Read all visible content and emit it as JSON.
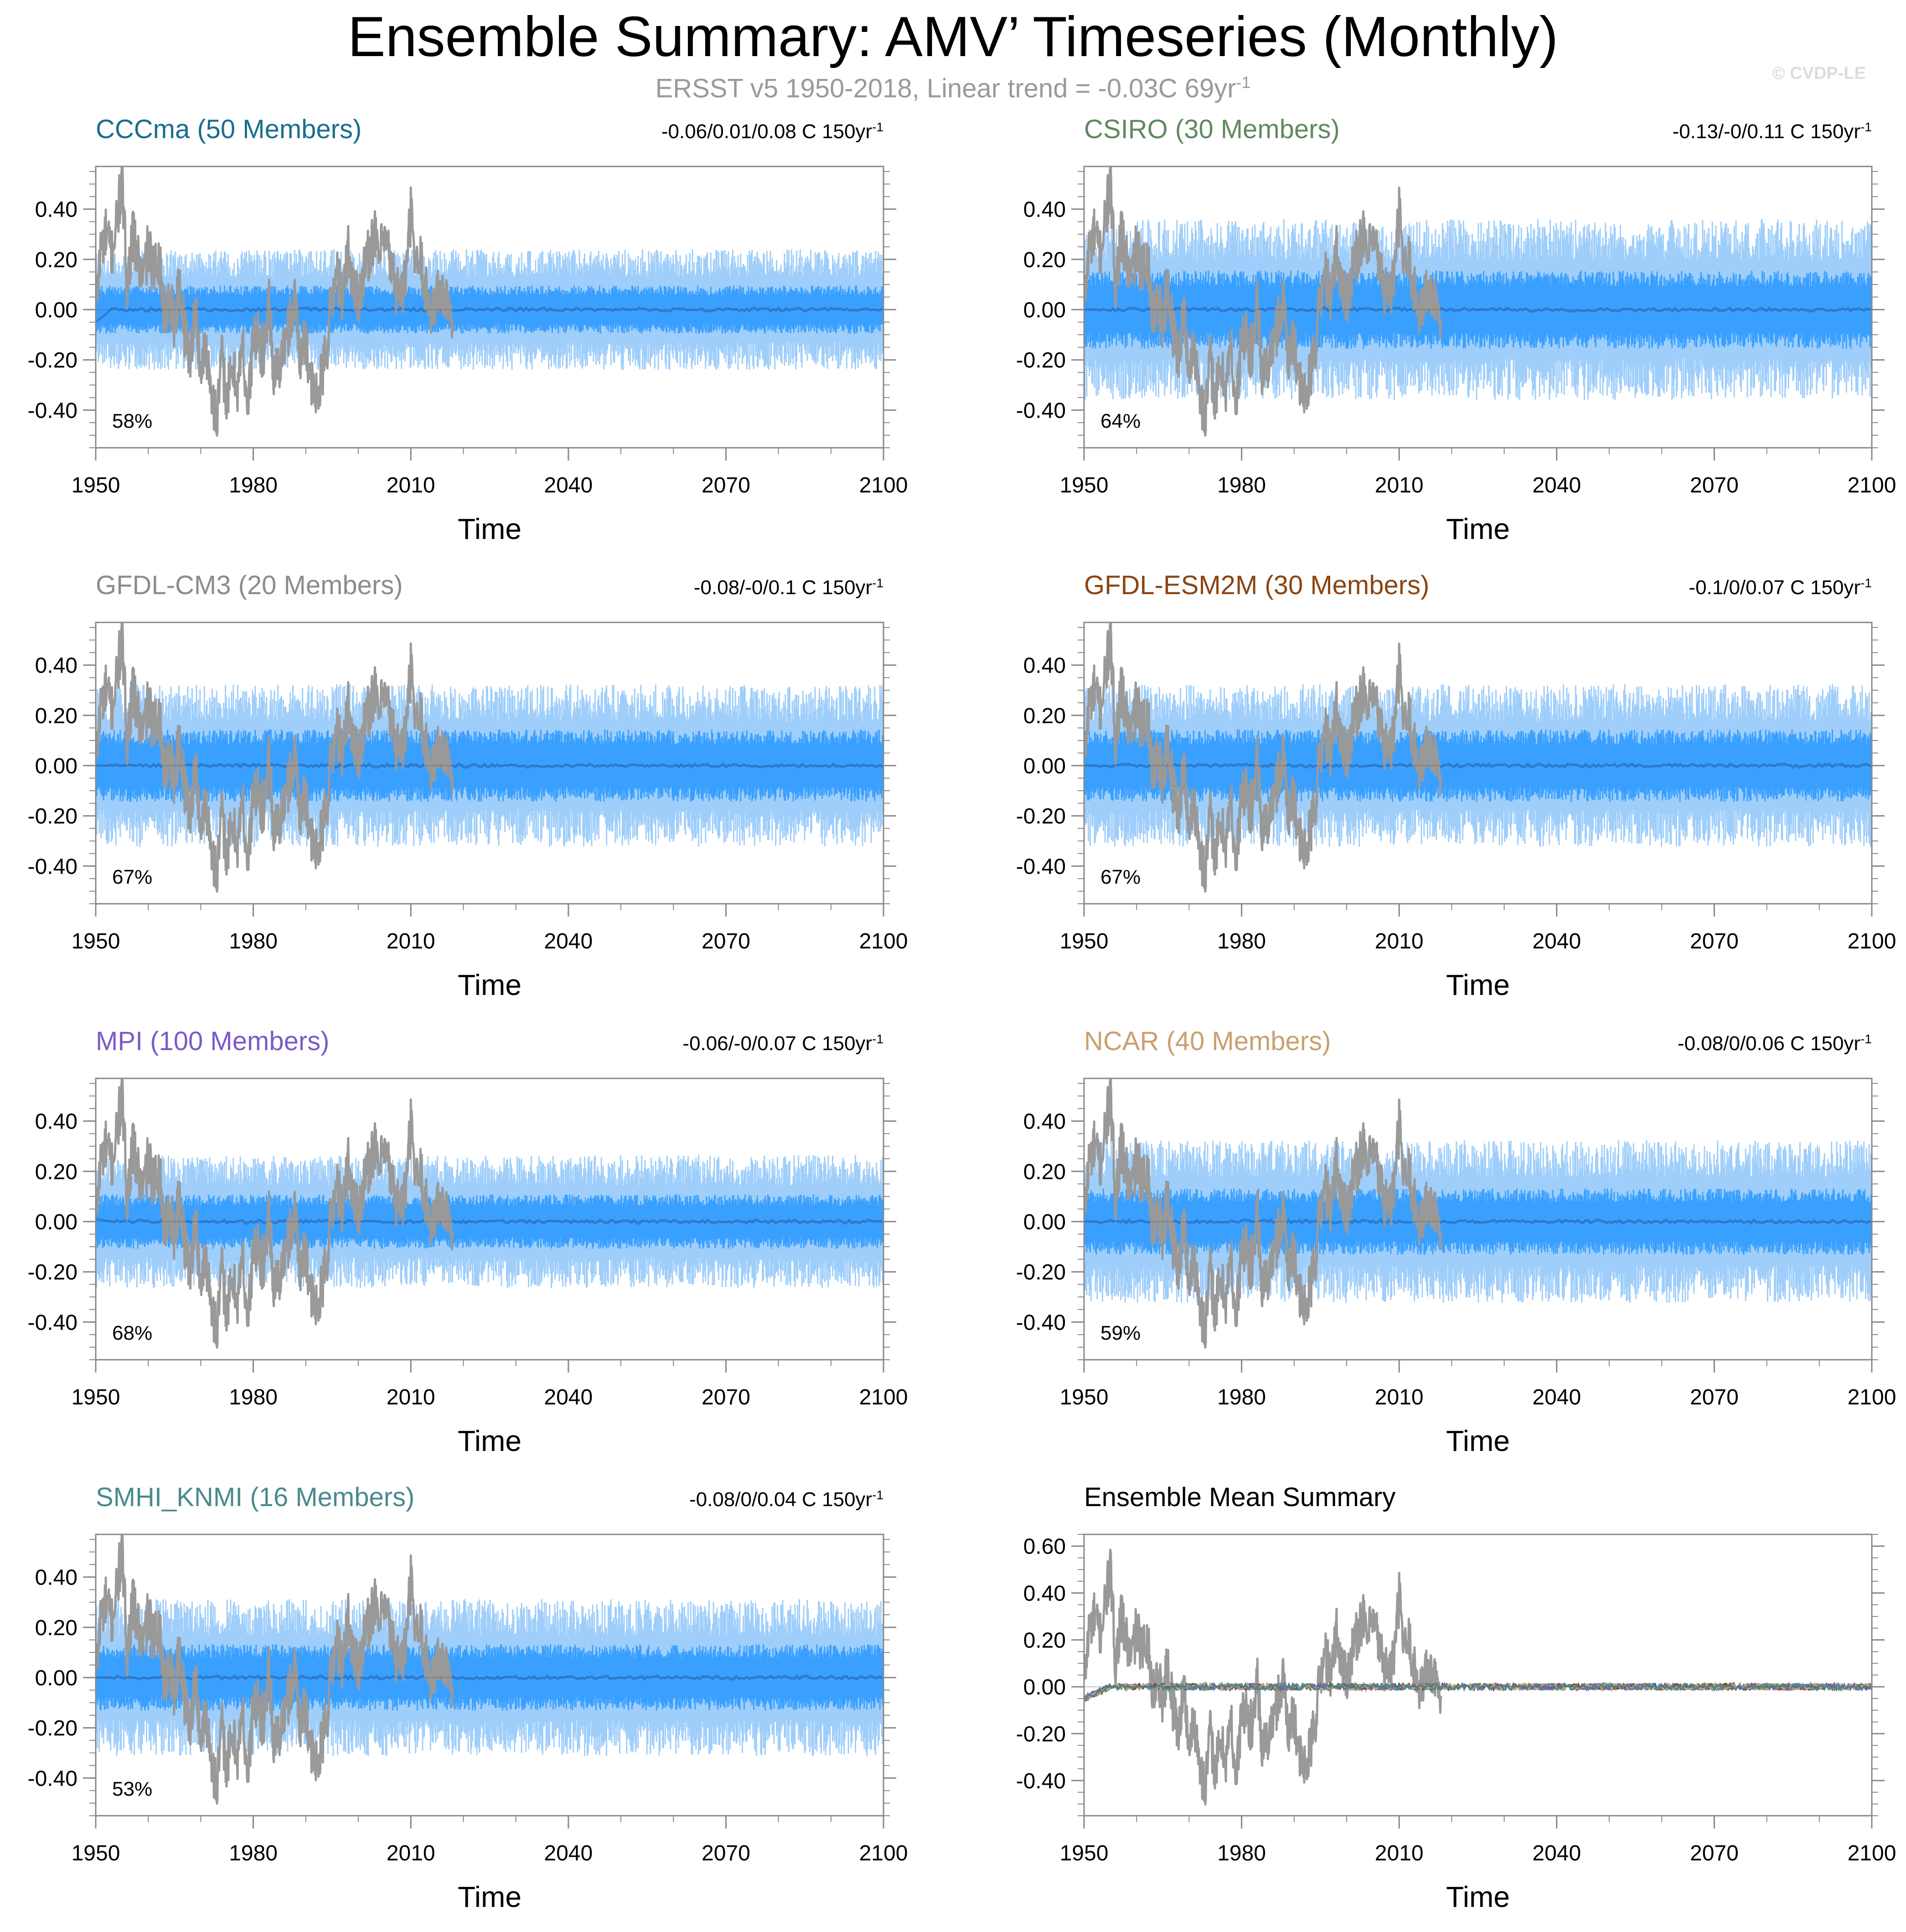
{
  "title": "Ensemble Summary: AMV’ Timeseries (Monthly)",
  "subtitle": {
    "text": "ERSST v5 1950-2018, Linear trend = -0.03C 69yr",
    "superscript": "-1"
  },
  "watermark": "© CVDP-LE",
  "colors": {
    "obs": "#999999",
    "band_outer": "#9fcefa",
    "band_inner": "#3aa0ff",
    "mean_line": "#2a7fd8",
    "axis": "#888888"
  },
  "chart_data": [
    {
      "type": "line",
      "panel": "CCCma",
      "title": "CCCma (50 Members)",
      "title_color": "#1a6e8e",
      "trend_text": "-0.06/0.01/0.08 C 150yr",
      "trend_sup": "-1",
      "percent_label": "58%",
      "xlabel": "Time",
      "xlim": [
        1950,
        2100
      ],
      "ylim": [
        -0.55,
        0.57
      ],
      "xticks": [
        "1950",
        "1980",
        "2010",
        "2040",
        "2070",
        "2100"
      ],
      "yticks": [
        "0.40",
        "0.20",
        "0.00",
        "-0.20",
        "-0.40"
      ],
      "series": [
        {
          "name": "Ensemble 10-90% range",
          "lower": -0.2,
          "upper": 0.2
        },
        {
          "name": "Ensemble 25-75% range",
          "lower": -0.08,
          "upper": 0.08
        },
        {
          "name": "Ensemble mean",
          "start": -0.05,
          "value": 0.0
        },
        {
          "name": "ERSST v5",
          "x_range": [
            1950,
            2018
          ]
        }
      ]
    },
    {
      "type": "line",
      "panel": "CSIRO",
      "title": "CSIRO (30 Members)",
      "title_color": "#5f8a5f",
      "trend_text": "-0.13/-0/0.11 C 150yr",
      "trend_sup": "-1",
      "percent_label": "64%",
      "xlabel": "Time",
      "xlim": [
        1950,
        2100
      ],
      "ylim": [
        -0.55,
        0.57
      ],
      "xticks": [
        "1950",
        "1980",
        "2010",
        "2040",
        "2070",
        "2100"
      ],
      "yticks": [
        "0.40",
        "0.20",
        "0.00",
        "-0.20",
        "-0.40"
      ],
      "series": [
        {
          "name": "Ensemble 10-90% range",
          "lower": -0.3,
          "upper": 0.3
        },
        {
          "name": "Ensemble 25-75% range",
          "lower": -0.13,
          "upper": 0.13
        },
        {
          "name": "Ensemble mean",
          "start": 0.0,
          "value": 0.0
        },
        {
          "name": "ERSST v5",
          "x_range": [
            1950,
            2018
          ]
        }
      ]
    },
    {
      "type": "line",
      "panel": "GFDL-CM3",
      "title": "GFDL-CM3 (20 Members)",
      "title_color": "#8c8c8c",
      "trend_text": "-0.08/-0/0.1 C 150yr",
      "trend_sup": "-1",
      "percent_label": "67%",
      "xlabel": "Time",
      "xlim": [
        1950,
        2100
      ],
      "ylim": [
        -0.55,
        0.57
      ],
      "xticks": [
        "1950",
        "1980",
        "2010",
        "2040",
        "2070",
        "2100"
      ],
      "yticks": [
        "0.40",
        "0.20",
        "0.00",
        "-0.20",
        "-0.40"
      ],
      "series": [
        {
          "name": "Ensemble 10-90% range",
          "lower": -0.27,
          "upper": 0.27
        },
        {
          "name": "Ensemble 25-75% range",
          "lower": -0.12,
          "upper": 0.12
        },
        {
          "name": "Ensemble mean",
          "start": 0.0,
          "value": 0.0
        },
        {
          "name": "ERSST v5",
          "x_range": [
            1950,
            2018
          ]
        }
      ]
    },
    {
      "type": "line",
      "panel": "GFDL-ESM2M",
      "title": "GFDL-ESM2M (30 Members)",
      "title_color": "#8b4513",
      "trend_text": "-0.1/0/0.07 C 150yr",
      "trend_sup": "-1",
      "percent_label": "67%",
      "xlabel": "Time",
      "xlim": [
        1950,
        2100
      ],
      "ylim": [
        -0.55,
        0.57
      ],
      "xticks": [
        "1950",
        "1980",
        "2010",
        "2040",
        "2070",
        "2100"
      ],
      "yticks": [
        "0.40",
        "0.20",
        "0.00",
        "-0.20",
        "-0.40"
      ],
      "series": [
        {
          "name": "Ensemble 10-90% range",
          "lower": -0.27,
          "upper": 0.27
        },
        {
          "name": "Ensemble 25-75% range",
          "lower": -0.12,
          "upper": 0.12
        },
        {
          "name": "Ensemble mean",
          "start": 0.0,
          "value": 0.0
        },
        {
          "name": "ERSST v5",
          "x_range": [
            1950,
            2018
          ]
        }
      ]
    },
    {
      "type": "line",
      "panel": "MPI",
      "title": "MPI (100 Members)",
      "title_color": "#7b5bc9",
      "trend_text": "-0.06/-0/0.07 C 150yr",
      "trend_sup": "-1",
      "percent_label": "68%",
      "xlabel": "Time",
      "xlim": [
        1950,
        2100
      ],
      "ylim": [
        -0.55,
        0.57
      ],
      "xticks": [
        "1950",
        "1980",
        "2010",
        "2040",
        "2070",
        "2100"
      ],
      "yticks": [
        "0.40",
        "0.20",
        "0.00",
        "-0.20",
        "-0.40"
      ],
      "series": [
        {
          "name": "Ensemble 10-90% range",
          "lower": -0.22,
          "upper": 0.22
        },
        {
          "name": "Ensemble 25-75% range",
          "lower": -0.09,
          "upper": 0.09
        },
        {
          "name": "Ensemble mean",
          "start": 0.01,
          "value": 0.0
        },
        {
          "name": "ERSST v5",
          "x_range": [
            1950,
            2018
          ]
        }
      ]
    },
    {
      "type": "line",
      "panel": "NCAR",
      "title": "NCAR (40 Members)",
      "title_color": "#c9a070",
      "trend_text": "-0.08/0/0.06 C 150yr",
      "trend_sup": "-1",
      "percent_label": "59%",
      "xlabel": "Time",
      "xlim": [
        1950,
        2100
      ],
      "ylim": [
        -0.55,
        0.57
      ],
      "xticks": [
        "1950",
        "1980",
        "2010",
        "2040",
        "2070",
        "2100"
      ],
      "yticks": [
        "0.40",
        "0.20",
        "0.00",
        "-0.20",
        "-0.40"
      ],
      "series": [
        {
          "name": "Ensemble 10-90% range",
          "lower": -0.27,
          "upper": 0.27
        },
        {
          "name": "Ensemble 25-75% range",
          "lower": -0.11,
          "upper": 0.11
        },
        {
          "name": "Ensemble mean",
          "start": 0.0,
          "value": 0.0
        },
        {
          "name": "ERSST v5",
          "x_range": [
            1950,
            2018
          ]
        }
      ]
    },
    {
      "type": "line",
      "panel": "SMHI_KNMI",
      "title": "SMHI_KNMI (16 Members)",
      "title_color": "#4a8a8e",
      "trend_text": "-0.08/0/0.04 C 150yr",
      "trend_sup": "-1",
      "percent_label": "53%",
      "xlabel": "Time",
      "xlim": [
        1950,
        2100
      ],
      "ylim": [
        -0.55,
        0.57
      ],
      "xticks": [
        "1950",
        "1980",
        "2010",
        "2040",
        "2070",
        "2100"
      ],
      "yticks": [
        "0.40",
        "0.20",
        "0.00",
        "-0.20",
        "-0.40"
      ],
      "series": [
        {
          "name": "Ensemble 10-90% range",
          "lower": -0.26,
          "upper": 0.26
        },
        {
          "name": "Ensemble 25-75% range",
          "lower": -0.11,
          "upper": 0.11
        },
        {
          "name": "Ensemble mean",
          "start": 0.0,
          "value": 0.0
        },
        {
          "name": "ERSST v5",
          "x_range": [
            1950,
            2018
          ]
        }
      ]
    },
    {
      "type": "line",
      "panel": "Ensemble Mean Summary",
      "title": "Ensemble Mean Summary",
      "title_color": "#000000",
      "trend_text": "",
      "trend_sup": "",
      "percent_label": "",
      "xlabel": "Time",
      "xlim": [
        1950,
        2100
      ],
      "ylim": [
        -0.55,
        0.65
      ],
      "xticks": [
        "1950",
        "1980",
        "2010",
        "2040",
        "2070",
        "2100"
      ],
      "yticks": [
        "0.60",
        "0.40",
        "0.20",
        "0.00",
        "-0.20",
        "-0.40"
      ],
      "series": [
        {
          "name": "ERSST v5",
          "x_range": [
            1950,
            2018
          ]
        },
        {
          "name": "CCCma mean",
          "color": "#1a6e8e"
        },
        {
          "name": "CSIRO mean",
          "color": "#5f8a5f"
        },
        {
          "name": "GFDL-CM3 mean",
          "color": "#8c8c8c"
        },
        {
          "name": "GFDL-ESM2M mean",
          "color": "#8b4513"
        },
        {
          "name": "MPI mean",
          "color": "#7b5bc9"
        },
        {
          "name": "NCAR mean",
          "color": "#c9a070"
        },
        {
          "name": "SMHI_KNMI mean",
          "color": "#4a8a8e"
        }
      ]
    }
  ]
}
